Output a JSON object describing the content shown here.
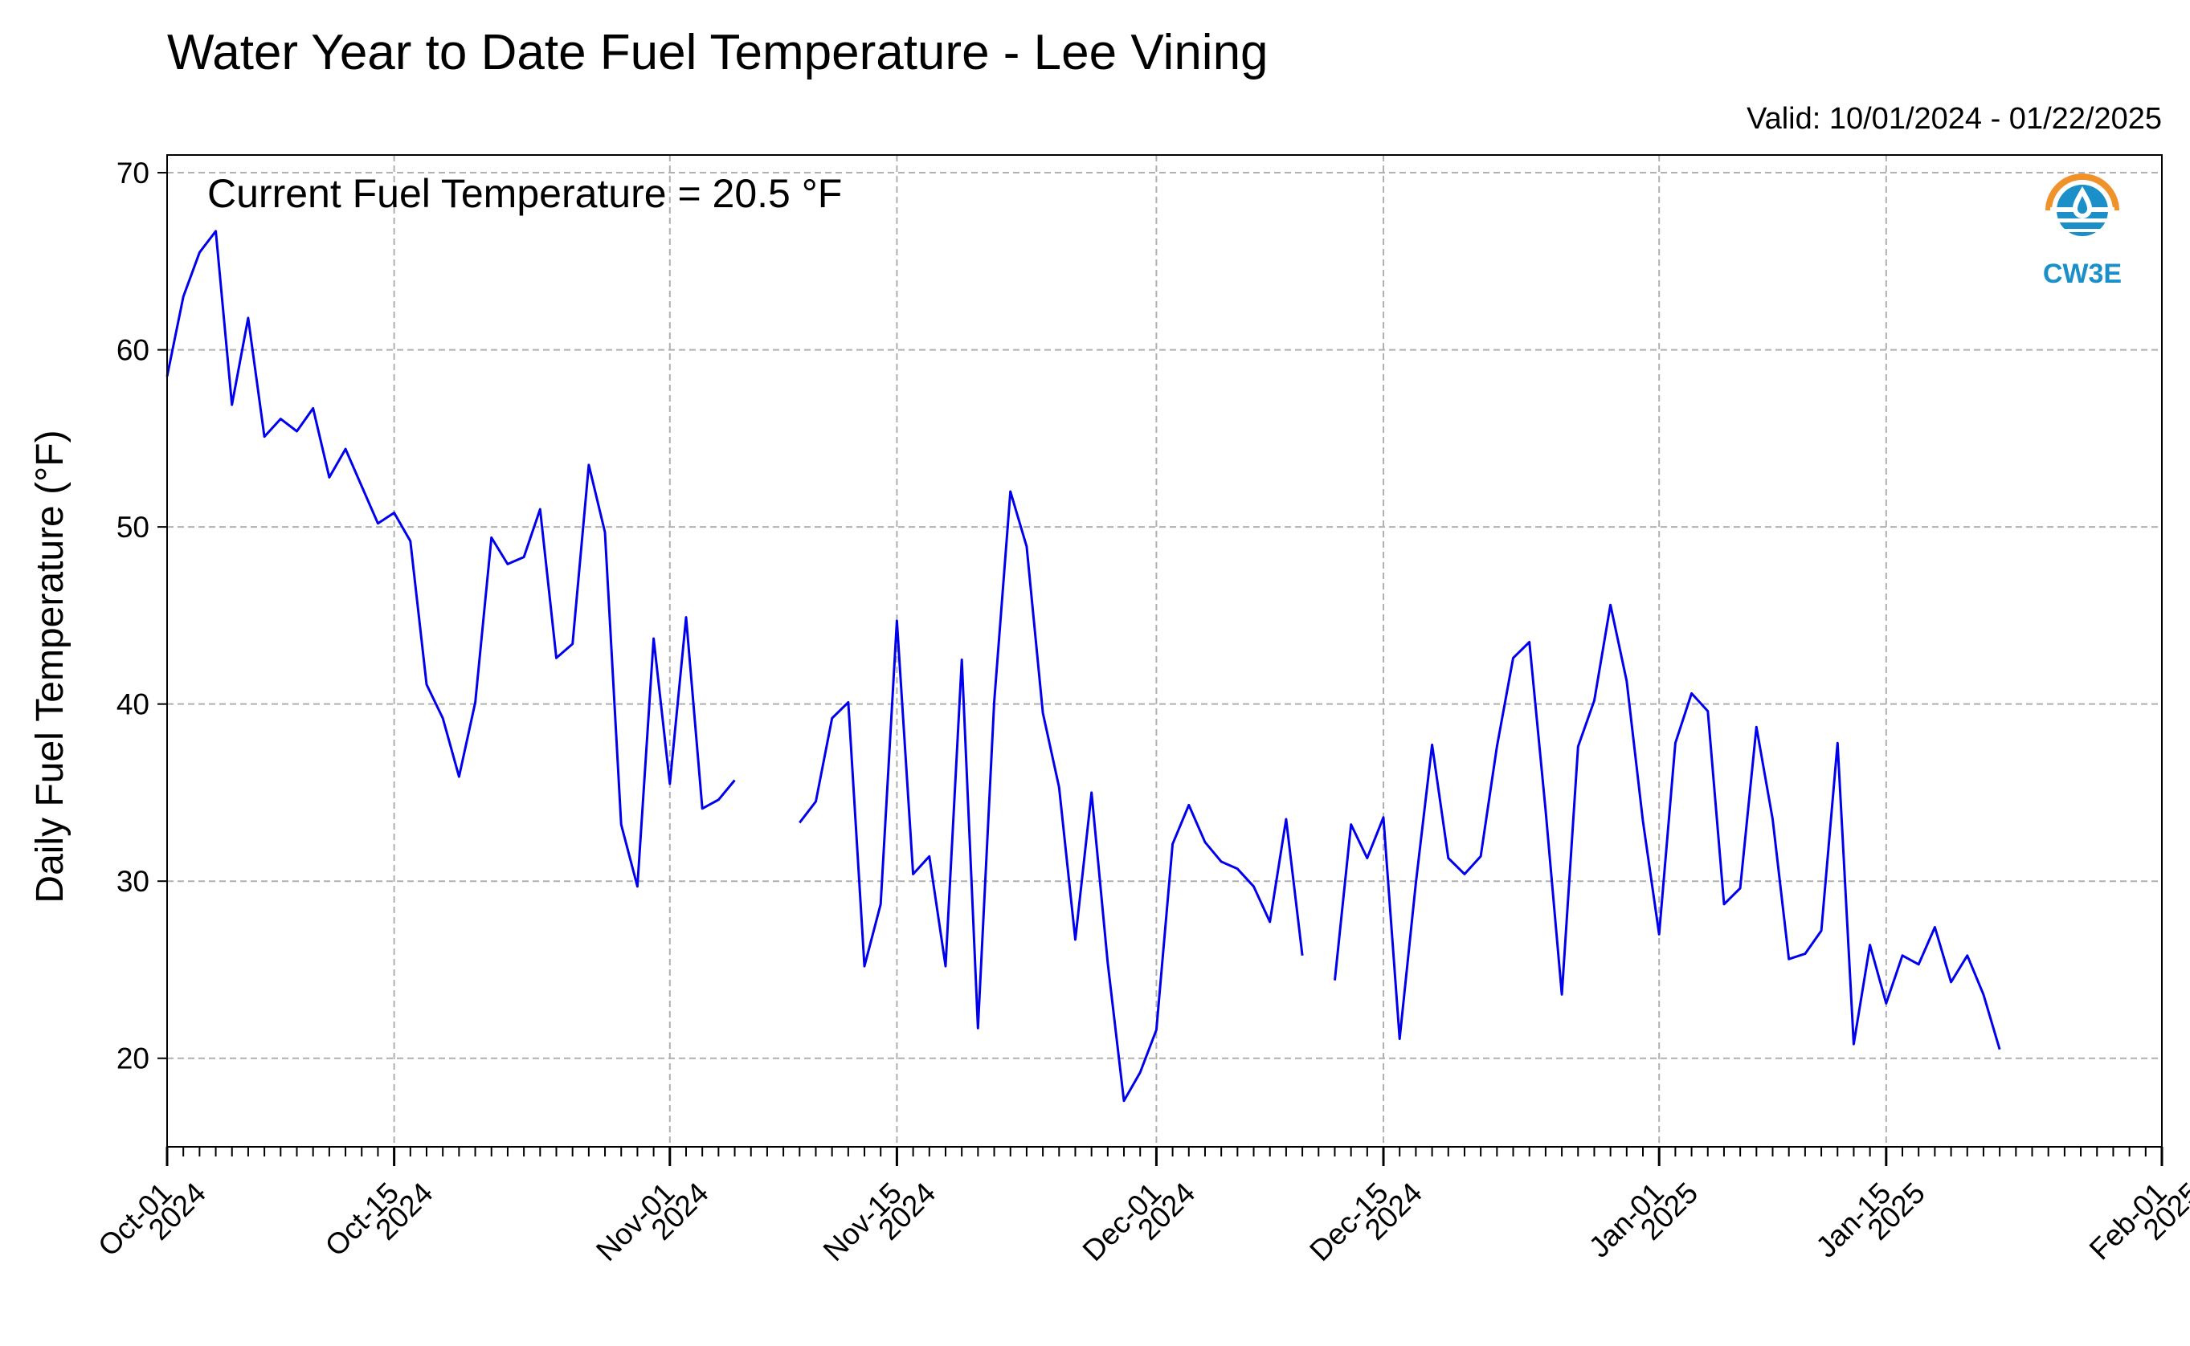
{
  "title": "Water Year to Date Fuel Temperature - Lee Vining",
  "valid_text": "Valid: 10/01/2024 - 01/22/2025",
  "annotation": "Current Fuel Temperature = 20.5  °F",
  "logo_text": "CW3E",
  "colors": {
    "series": "#0000ee",
    "grid": "#b0b0b0",
    "logo_orange": "#f0922a",
    "logo_blue": "#1a8fc8"
  },
  "chart_data": {
    "type": "line",
    "title": "Water Year to Date Fuel Temperature - Lee Vining",
    "ylabel": "Daily Fuel Temperature (°F)",
    "xlabel": "",
    "xlim": [
      "2024-10-01",
      "2025-02-01"
    ],
    "ylim": [
      15,
      71
    ],
    "grid": true,
    "y_ticks": [
      20,
      30,
      40,
      50,
      60,
      70
    ],
    "x_ticks": [
      {
        "date": "2024-10-01",
        "label": [
          "Oct-01",
          "2024"
        ]
      },
      {
        "date": "2024-10-15",
        "label": [
          "Oct-15",
          "2024"
        ]
      },
      {
        "date": "2024-11-01",
        "label": [
          "Nov-01",
          "2024"
        ]
      },
      {
        "date": "2024-11-15",
        "label": [
          "Nov-15",
          "2024"
        ]
      },
      {
        "date": "2024-12-01",
        "label": [
          "Dec-01",
          "2024"
        ]
      },
      {
        "date": "2024-12-15",
        "label": [
          "Dec-15",
          "2024"
        ]
      },
      {
        "date": "2025-01-01",
        "label": [
          "Jan-01",
          "2025"
        ]
      },
      {
        "date": "2025-01-15",
        "label": [
          "Jan-15",
          "2025"
        ]
      },
      {
        "date": "2025-02-01",
        "label": [
          "Feb-01",
          "2025"
        ]
      }
    ],
    "series": [
      {
        "start_date": "2024-10-01",
        "values": [
          58.5,
          63.0,
          65.5,
          66.7,
          56.9,
          61.8,
          55.1,
          56.1,
          55.4,
          56.7,
          52.8,
          54.4,
          52.3,
          50.2,
          50.8,
          49.2,
          41.1,
          39.2,
          35.9,
          40.1,
          49.4,
          47.9,
          48.3,
          51.0,
          42.6,
          43.4,
          53.5,
          49.7,
          33.2,
          29.7,
          43.7,
          35.5,
          44.9,
          34.1,
          34.6,
          35.7,
          null,
          null,
          null,
          33.3,
          34.5,
          39.2,
          40.1,
          25.2,
          28.7,
          44.7,
          30.4,
          31.4,
          25.2,
          42.5,
          21.7,
          40.1,
          52.0,
          48.9,
          39.5,
          35.3,
          26.7,
          35.0,
          25.4,
          17.6,
          19.2,
          21.6,
          32.1,
          34.3,
          32.2,
          31.1,
          30.7,
          29.7,
          27.7,
          33.5,
          25.8,
          null,
          24.4,
          33.2,
          31.3,
          33.6,
          21.1,
          29.9,
          37.7,
          31.3,
          30.4,
          31.4,
          37.6,
          42.6,
          43.5,
          34.0,
          23.6,
          37.6,
          40.2,
          45.6,
          41.3,
          33.4,
          27.0,
          37.8,
          40.6,
          39.6,
          28.7,
          29.6,
          38.7,
          33.5,
          25.6,
          25.9,
          27.2,
          37.8,
          20.8,
          26.4,
          23.1,
          25.8,
          25.3,
          27.4,
          24.3,
          25.8,
          23.6,
          20.5
        ]
      }
    ]
  }
}
